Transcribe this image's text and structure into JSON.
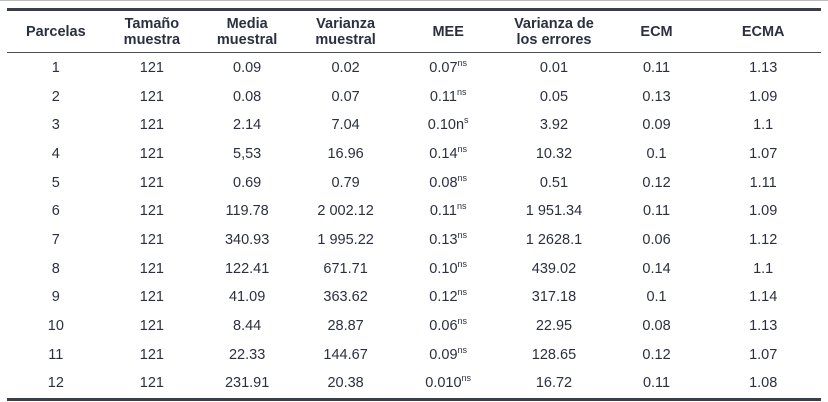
{
  "table": {
    "columns": [
      {
        "id": "parcelas",
        "lines": [
          "Parcelas"
        ],
        "width_pct": 12.0
      },
      {
        "id": "tamano",
        "lines": [
          "Tamaño",
          "muestra"
        ],
        "width_pct": 11.6
      },
      {
        "id": "media",
        "lines": [
          "Media",
          "muestral"
        ],
        "width_pct": 11.8
      },
      {
        "id": "var_muestral",
        "lines": [
          "Varianza",
          "muestral"
        ],
        "width_pct": 12.4
      },
      {
        "id": "mee",
        "lines": [
          "MEE"
        ],
        "width_pct": 12.8
      },
      {
        "id": "var_errores",
        "lines": [
          "Varianza de",
          "los errores"
        ],
        "width_pct": 13.2
      },
      {
        "id": "ecm",
        "lines": [
          "ECM"
        ],
        "width_pct": 12.0
      },
      {
        "id": "ecma",
        "lines": [
          "ECMA"
        ],
        "width_pct": 14.2
      }
    ],
    "rows": [
      {
        "parcelas": "1",
        "tamano": "121",
        "media": "0.09",
        "var_muestral": "0.02",
        "mee": "0.07",
        "mee_sup": "ns",
        "var_errores": "0.01",
        "ecm": "0.11",
        "ecma": "1.13"
      },
      {
        "parcelas": "2",
        "tamano": "121",
        "media": "0.08",
        "var_muestral": "0.07",
        "mee": "0.11",
        "mee_sup": "ns",
        "var_errores": "0.05",
        "ecm": "0.13",
        "ecma": "1.09"
      },
      {
        "parcelas": "3",
        "tamano": "121",
        "media": "2.14",
        "var_muestral": "7.04",
        "mee": "0.10n",
        "mee_sup": "s",
        "var_errores": "3.92",
        "ecm": "0.09",
        "ecma": "1.1"
      },
      {
        "parcelas": "4",
        "tamano": "121",
        "media": "5,53",
        "var_muestral": "16.96",
        "mee": "0.14",
        "mee_sup": "ns",
        "var_errores": "10.32",
        "ecm": "0.1",
        "ecma": "1.07"
      },
      {
        "parcelas": "5",
        "tamano": "121",
        "media": "0.69",
        "var_muestral": "0.79",
        "mee": "0.08",
        "mee_sup": "ns",
        "var_errores": "0.51",
        "ecm": "0.12",
        "ecma": "1.11"
      },
      {
        "parcelas": "6",
        "tamano": "121",
        "media": "119.78",
        "var_muestral": "2 002.12",
        "mee": "0.11",
        "mee_sup": "ns",
        "var_errores": "1 951.34",
        "ecm": "0.11",
        "ecma": "1.09"
      },
      {
        "parcelas": "7",
        "tamano": "121",
        "media": "340.93",
        "var_muestral": "1 995.22",
        "mee": "0.13",
        "mee_sup": "ns",
        "var_errores": "1 2628.1",
        "ecm": "0.06",
        "ecma": "1.12"
      },
      {
        "parcelas": "8",
        "tamano": "121",
        "media": "122.41",
        "var_muestral": "671.71",
        "mee": "0.10",
        "mee_sup": "ns",
        "var_errores": "439.02",
        "ecm": "0.14",
        "ecma": "1.1"
      },
      {
        "parcelas": "9",
        "tamano": "121",
        "media": "41.09",
        "var_muestral": "363.62",
        "mee": "0.12",
        "mee_sup": "ns",
        "var_errores": "317.18",
        "ecm": "0.1",
        "ecma": "1.14"
      },
      {
        "parcelas": "10",
        "tamano": "121",
        "media": "8.44",
        "var_muestral": "28.87",
        "mee": "0.06",
        "mee_sup": "ns",
        "var_errores": "22.95",
        "ecm": "0.08",
        "ecma": "1.13"
      },
      {
        "parcelas": "11",
        "tamano": "121",
        "media": "22.33",
        "var_muestral": "144.67",
        "mee": "0.09",
        "mee_sup": "ns",
        "var_errores": "128.65",
        "ecm": "0.12",
        "ecma": "1.07"
      },
      {
        "parcelas": "12",
        "tamano": "121",
        "media": "231.91",
        "var_muestral": "20.38",
        "mee": "0.010",
        "mee_sup": "ns",
        "var_errores": "16.72",
        "ecm": "0.11",
        "ecma": "1.08"
      }
    ]
  },
  "colors": {
    "text": "#2b3040",
    "rule_heavy": "#3a3e48",
    "rule_light": "#4a4e59",
    "hairline": "#bcbcbc"
  }
}
